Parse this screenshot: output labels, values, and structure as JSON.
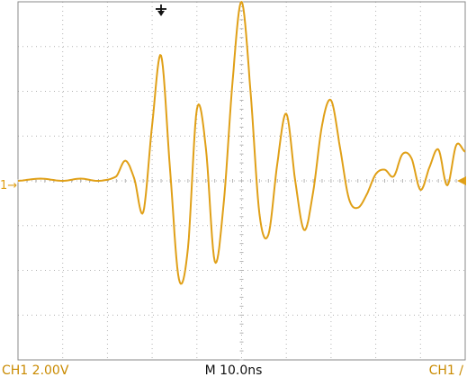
{
  "colors": {
    "trace": "#e0a018",
    "grid": "#b4b4b4",
    "frame": "#8a8a8a",
    "marker": "#e0a018",
    "trigger_pos": "#111111",
    "status_text": "#c98a00"
  },
  "status": {
    "channel_scale": "CH1  2.00V",
    "timebase": "M 10.0ns",
    "trigger": "CH1  ∕"
  },
  "markers": {
    "channel_ground": "1→",
    "trigger_level_icon": "left-arrow-icon",
    "trigger_position_icon": "down-arrow-icon"
  },
  "chart_data": {
    "type": "line",
    "title": "",
    "xlabel": "",
    "ylabel": "",
    "x_divisions": 10,
    "y_divisions": 8,
    "grid": true,
    "xlim": [
      0,
      100
    ],
    "ylim": [
      -8,
      8
    ],
    "x_unit": "ns",
    "y_unit": "V",
    "series": [
      {
        "x": [
          0,
          5,
          10,
          14,
          18,
          22,
          24,
          26,
          28,
          30,
          32,
          34,
          36,
          38,
          40,
          42,
          44,
          46,
          48,
          50,
          52,
          54,
          56,
          58,
          60,
          62,
          64,
          66,
          68,
          70,
          72,
          74,
          76,
          78,
          80,
          82,
          84,
          86,
          88,
          90,
          92,
          94,
          96,
          98,
          100
        ],
        "y": [
          0,
          0.1,
          0,
          0.1,
          0,
          0.2,
          0.9,
          0.1,
          -1.4,
          2.5,
          5.6,
          0.5,
          -4.4,
          -3.0,
          3.2,
          1.5,
          -3.6,
          -1.0,
          4.5,
          8.0,
          4.0,
          -1.5,
          -2.4,
          0.8,
          3.0,
          0.0,
          -2.2,
          -0.5,
          2.5,
          3.6,
          1.5,
          -0.8,
          -1.2,
          -0.6,
          0.3,
          0.5,
          0.2,
          1.2,
          1.0,
          -0.4,
          0.6,
          1.4,
          -0.2,
          1.6,
          1.3
        ]
      }
    ]
  }
}
